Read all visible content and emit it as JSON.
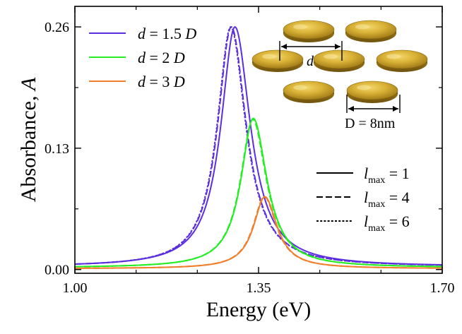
{
  "chart_data": {
    "type": "line",
    "xlabel": "Energy (eV)",
    "ylabel_var": "A",
    "ylabel_prefix": "Absorbance, ",
    "xlim": [
      1.0,
      1.7
    ],
    "ylim": [
      -0.004,
      0.282
    ],
    "xticks": [
      1.0,
      1.35,
      1.7
    ],
    "xtick_labels": [
      "1.00",
      "1.35",
      "1.70"
    ],
    "yticks": [
      0.0,
      0.13,
      0.26
    ],
    "ytick_labels": [
      "0.00",
      "0.13",
      "0.26"
    ],
    "grid": false,
    "series": [
      {
        "name": "d = 1.5 D, l_max = 1",
        "color": "#5b2ee0",
        "dash": "solid",
        "peak_x": 1.305,
        "peak_y": 0.26,
        "gamma": 0.034,
        "asym": 0.05,
        "base": 0.003
      },
      {
        "name": "d = 1.5 D, l_max = 4",
        "color": "#5b2ee0",
        "dash": "dashed",
        "peak_x": 1.298,
        "peak_y": 0.26,
        "gamma": 0.033,
        "asym": 0.05,
        "base": 0.003
      },
      {
        "name": "d = 1.5 D, l_max = 6",
        "color": "#5b2ee0",
        "dash": "dotted",
        "peak_x": 1.297,
        "peak_y": 0.26,
        "gamma": 0.033,
        "asym": 0.05,
        "base": 0.003
      },
      {
        "name": "d = 2 D, l_max = 1",
        "color": "#22ee22",
        "dash": "solid",
        "peak_x": 1.34,
        "peak_y": 0.162,
        "gamma": 0.03,
        "asym": 0.05,
        "base": 0.002
      },
      {
        "name": "d = 2 D, l_max = 4",
        "color": "#22ee22",
        "dash": "dashed",
        "peak_x": 1.339,
        "peak_y": 0.161,
        "gamma": 0.03,
        "asym": 0.05,
        "base": 0.002
      },
      {
        "name": "d = 3 D, l_max = 1",
        "color": "#f07e2a",
        "dash": "solid",
        "peak_x": 1.362,
        "peak_y": 0.078,
        "gamma": 0.027,
        "asym": 0.04,
        "base": 0.001
      },
      {
        "name": "d = 3 D, l_max = 4",
        "color": "#f07e2a",
        "dash": "dashed",
        "peak_x": 1.361,
        "peak_y": 0.078,
        "gamma": 0.027,
        "asym": 0.04,
        "base": 0.001
      }
    ],
    "legend_color": {
      "position": "top-left",
      "entries": [
        {
          "var": "d",
          "text": " = 1.5 ",
          "unit": "D",
          "color": "#5b2ee0"
        },
        {
          "var": "d",
          "text": " = 2 ",
          "unit": "D",
          "color": "#22ee22"
        },
        {
          "var": "d",
          "text": " = 3 ",
          "unit": "D",
          "color": "#f07e2a"
        }
      ]
    },
    "legend_style": {
      "position": "bottom-right",
      "entries": [
        {
          "var": "l",
          "sub": "max",
          "text": " = 1",
          "dash": "solid"
        },
        {
          "var": "l",
          "sub": "max",
          "text": " = 4",
          "dash": "dashed"
        },
        {
          "var": "l",
          "sub": "max",
          "text": " = 6",
          "dash": "dotted"
        }
      ]
    },
    "inset": {
      "spacing_label": "d",
      "diameter_label": "D = 8nm"
    }
  }
}
